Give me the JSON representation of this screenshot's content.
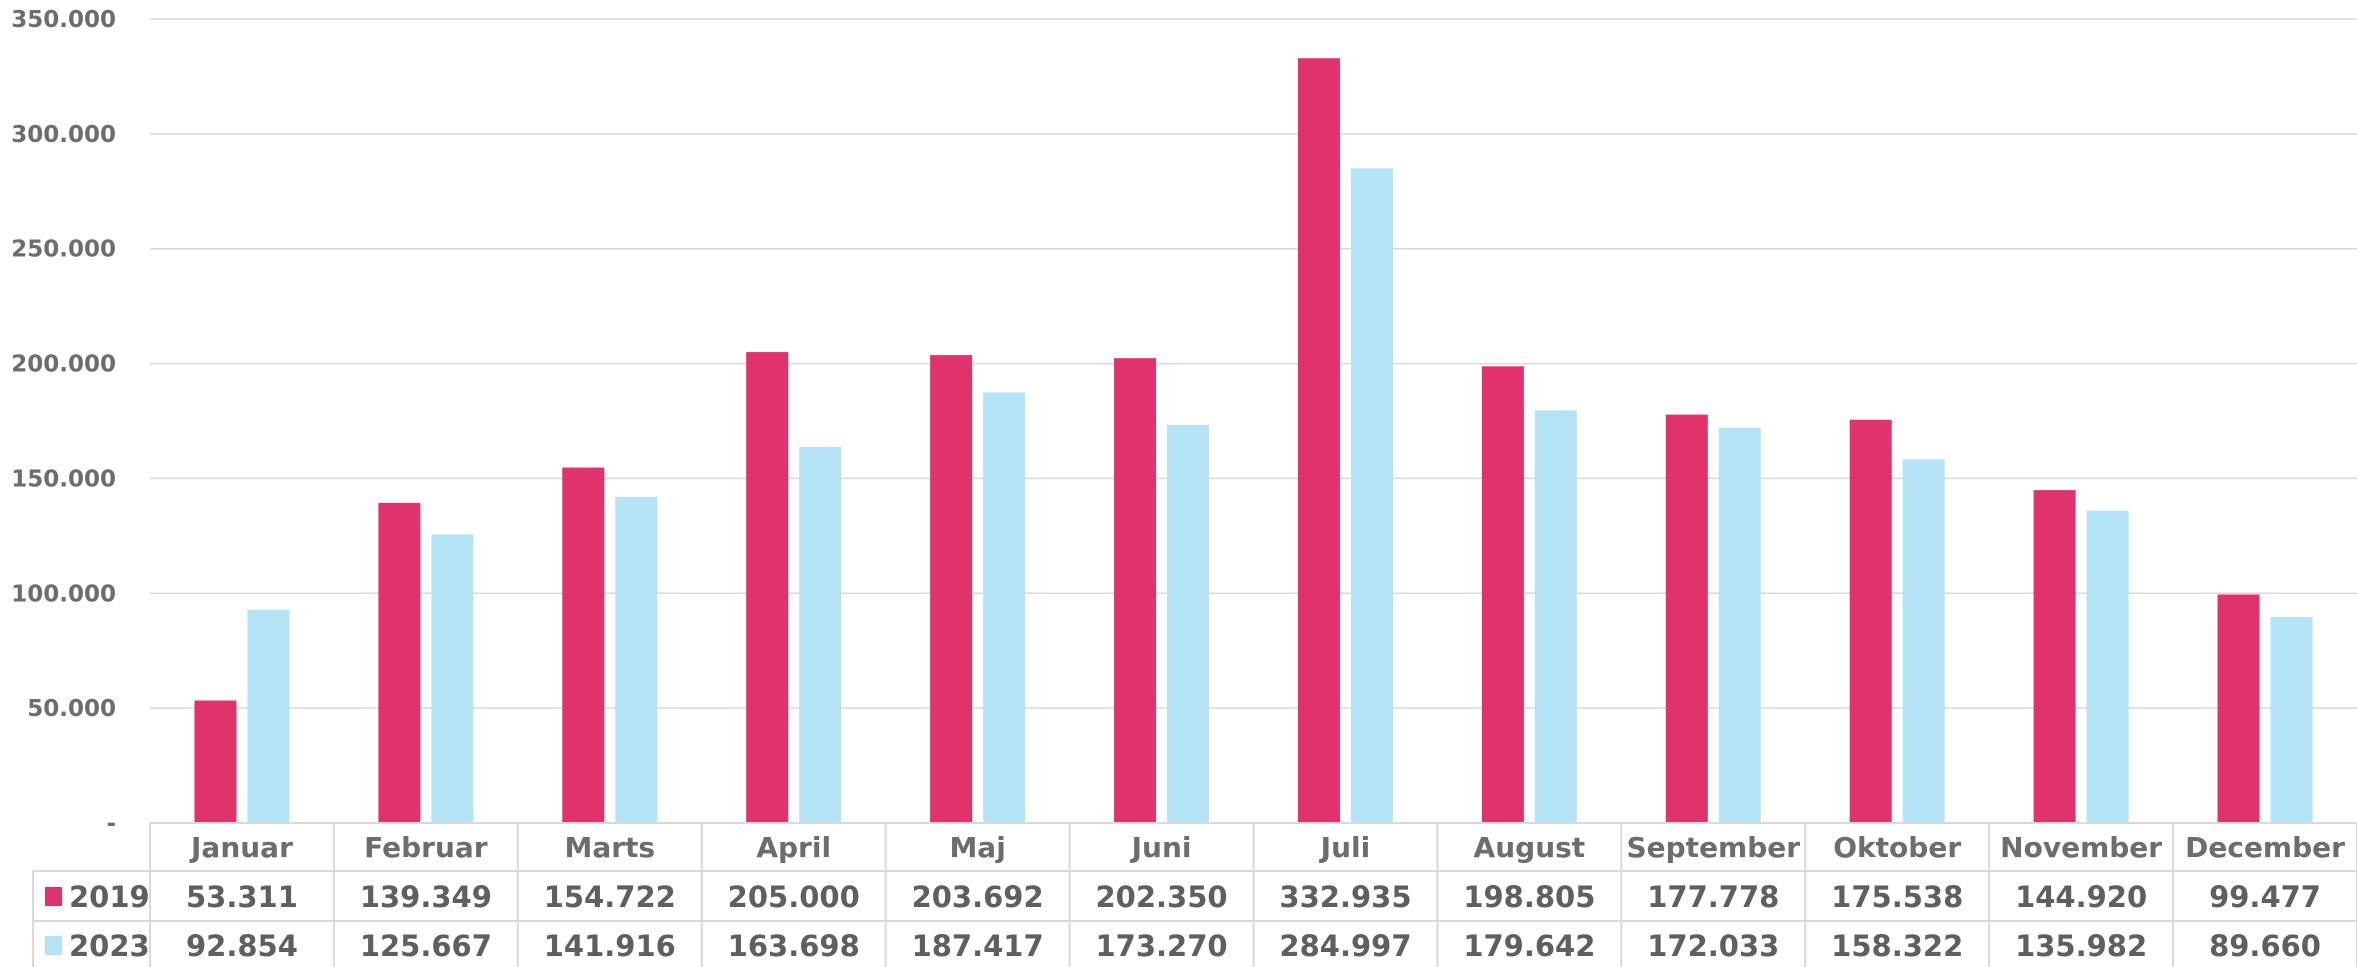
{
  "chart_data": {
    "type": "bar",
    "title": "",
    "xlabel": "",
    "ylabel": "",
    "ylim": [
      0,
      350000
    ],
    "y_ticks": [
      0,
      50000,
      100000,
      150000,
      200000,
      250000,
      300000,
      350000
    ],
    "y_tick_labels": [
      "-",
      "50.000",
      "100.000",
      "150.000",
      "200.000",
      "250.000",
      "300.000",
      "350.000"
    ],
    "grid": true,
    "legend": "data-table-left",
    "categories": [
      "Januar",
      "Februar",
      "Marts",
      "April",
      "Maj",
      "Juni",
      "Juli",
      "August",
      "September",
      "Oktober",
      "November",
      "December"
    ],
    "series": [
      {
        "name": "2019",
        "color": "#e0336b",
        "values": [
          53311,
          139349,
          154722,
          205000,
          203692,
          202350,
          332935,
          198805,
          177778,
          175538,
          144920,
          99477
        ],
        "labels": [
          "53.311",
          "139.349",
          "154.722",
          "205.000",
          "203.692",
          "202.350",
          "332.935",
          "198.805",
          "177.778",
          "175.538",
          "144.920",
          "99.477"
        ]
      },
      {
        "name": "2023",
        "color": "#b4e3f6",
        "values": [
          92854,
          125667,
          141916,
          163698,
          187417,
          173270,
          284997,
          179642,
          172033,
          158322,
          135982,
          89660
        ],
        "labels": [
          "92.854",
          "125.667",
          "141.916",
          "163.698",
          "187.417",
          "173.270",
          "284.997",
          "179.642",
          "172.033",
          "158.322",
          "135.982",
          "89.660"
        ]
      }
    ]
  }
}
